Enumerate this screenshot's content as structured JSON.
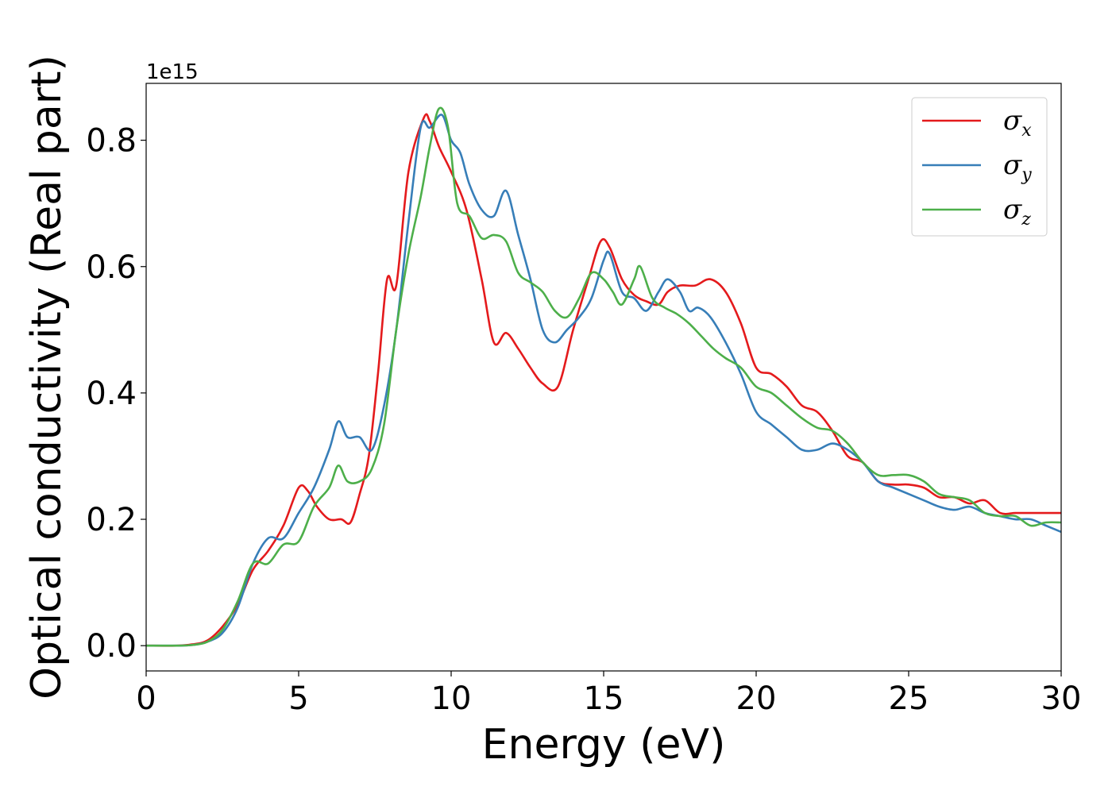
{
  "chart_data": {
    "type": "line",
    "xlabel": "Energy (eV)",
    "ylabel": "Optical conductivity (Real part)",
    "y_offset_label": "1e15",
    "xlim": [
      0,
      30
    ],
    "ylim": [
      -0.04,
      0.89
    ],
    "x_ticks": [
      0,
      5,
      10,
      15,
      20,
      25,
      30
    ],
    "x_tick_labels": [
      "0",
      "5",
      "10",
      "15",
      "20",
      "25",
      "30"
    ],
    "y_ticks": [
      0.0,
      0.2,
      0.4,
      0.6,
      0.8
    ],
    "y_tick_labels": [
      "0.0",
      "0.2",
      "0.4",
      "0.6",
      "0.8"
    ],
    "grid": false,
    "legend_position": "top-right",
    "series": [
      {
        "name": "σx",
        "symbol": "σ",
        "subscript": "x",
        "color": "#e41a1c",
        "points": [
          [
            0,
            0.0
          ],
          [
            1,
            0.0
          ],
          [
            1.5,
            0.002
          ],
          [
            2,
            0.008
          ],
          [
            2.5,
            0.03
          ],
          [
            3,
            0.065
          ],
          [
            3.5,
            0.12
          ],
          [
            4,
            0.15
          ],
          [
            4.5,
            0.19
          ],
          [
            5,
            0.25
          ],
          [
            5.3,
            0.245
          ],
          [
            5.6,
            0.22
          ],
          [
            6,
            0.2
          ],
          [
            6.4,
            0.2
          ],
          [
            6.7,
            0.195
          ],
          [
            7,
            0.24
          ],
          [
            7.3,
            0.3
          ],
          [
            7.6,
            0.43
          ],
          [
            7.9,
            0.58
          ],
          [
            8.2,
            0.57
          ],
          [
            8.6,
            0.75
          ],
          [
            9.1,
            0.835
          ],
          [
            9.3,
            0.83
          ],
          [
            9.6,
            0.79
          ],
          [
            10,
            0.75
          ],
          [
            10.5,
            0.69
          ],
          [
            11,
            0.58
          ],
          [
            11.4,
            0.48
          ],
          [
            11.8,
            0.495
          ],
          [
            12.2,
            0.47
          ],
          [
            12.6,
            0.44
          ],
          [
            13,
            0.415
          ],
          [
            13.5,
            0.41
          ],
          [
            14,
            0.5
          ],
          [
            14.5,
            0.58
          ],
          [
            14.9,
            0.64
          ],
          [
            15.2,
            0.63
          ],
          [
            15.6,
            0.58
          ],
          [
            16,
            0.555
          ],
          [
            16.4,
            0.545
          ],
          [
            16.8,
            0.54
          ],
          [
            17.1,
            0.56
          ],
          [
            17.5,
            0.57
          ],
          [
            18,
            0.57
          ],
          [
            18.5,
            0.58
          ],
          [
            19,
            0.56
          ],
          [
            19.5,
            0.51
          ],
          [
            20,
            0.44
          ],
          [
            20.5,
            0.43
          ],
          [
            21,
            0.41
          ],
          [
            21.5,
            0.38
          ],
          [
            22,
            0.37
          ],
          [
            22.5,
            0.34
          ],
          [
            23,
            0.3
          ],
          [
            23.5,
            0.29
          ],
          [
            24,
            0.26
          ],
          [
            24.5,
            0.255
          ],
          [
            25,
            0.255
          ],
          [
            25.5,
            0.25
          ],
          [
            26,
            0.235
          ],
          [
            26.5,
            0.235
          ],
          [
            27,
            0.225
          ],
          [
            27.5,
            0.23
          ],
          [
            28,
            0.21
          ],
          [
            28.5,
            0.21
          ],
          [
            29,
            0.21
          ],
          [
            29.5,
            0.21
          ],
          [
            30,
            0.21
          ]
        ]
      },
      {
        "name": "σy",
        "symbol": "σ",
        "subscript": "y",
        "color": "#377eb8",
        "points": [
          [
            0,
            0.0
          ],
          [
            1,
            0.0
          ],
          [
            1.5,
            0.001
          ],
          [
            2,
            0.006
          ],
          [
            2.5,
            0.02
          ],
          [
            3,
            0.06
          ],
          [
            3.5,
            0.13
          ],
          [
            4,
            0.17
          ],
          [
            4.5,
            0.17
          ],
          [
            5,
            0.21
          ],
          [
            5.5,
            0.25
          ],
          [
            6,
            0.31
          ],
          [
            6.3,
            0.355
          ],
          [
            6.6,
            0.33
          ],
          [
            7,
            0.33
          ],
          [
            7.4,
            0.31
          ],
          [
            7.8,
            0.38
          ],
          [
            8.2,
            0.5
          ],
          [
            8.6,
            0.67
          ],
          [
            9,
            0.82
          ],
          [
            9.3,
            0.82
          ],
          [
            9.7,
            0.84
          ],
          [
            10,
            0.8
          ],
          [
            10.3,
            0.78
          ],
          [
            10.6,
            0.73
          ],
          [
            11,
            0.69
          ],
          [
            11.4,
            0.68
          ],
          [
            11.8,
            0.72
          ],
          [
            12.2,
            0.65
          ],
          [
            12.6,
            0.58
          ],
          [
            13,
            0.5
          ],
          [
            13.4,
            0.48
          ],
          [
            13.8,
            0.5
          ],
          [
            14.2,
            0.52
          ],
          [
            14.6,
            0.55
          ],
          [
            15,
            0.61
          ],
          [
            15.2,
            0.62
          ],
          [
            15.6,
            0.56
          ],
          [
            16,
            0.55
          ],
          [
            16.4,
            0.53
          ],
          [
            16.8,
            0.56
          ],
          [
            17.1,
            0.58
          ],
          [
            17.5,
            0.56
          ],
          [
            17.8,
            0.53
          ],
          [
            18.1,
            0.535
          ],
          [
            18.5,
            0.52
          ],
          [
            19,
            0.48
          ],
          [
            19.5,
            0.43
          ],
          [
            20,
            0.37
          ],
          [
            20.5,
            0.35
          ],
          [
            21,
            0.33
          ],
          [
            21.5,
            0.31
          ],
          [
            22,
            0.31
          ],
          [
            22.5,
            0.32
          ],
          [
            23,
            0.31
          ],
          [
            23.5,
            0.29
          ],
          [
            24,
            0.26
          ],
          [
            24.5,
            0.25
          ],
          [
            25,
            0.24
          ],
          [
            25.5,
            0.23
          ],
          [
            26,
            0.22
          ],
          [
            26.5,
            0.215
          ],
          [
            27,
            0.22
          ],
          [
            27.5,
            0.21
          ],
          [
            28,
            0.205
          ],
          [
            28.5,
            0.2
          ],
          [
            29,
            0.2
          ],
          [
            29.5,
            0.19
          ],
          [
            30,
            0.18
          ]
        ]
      },
      {
        "name": "σz",
        "symbol": "σ",
        "subscript": "z",
        "color": "#4daf4a",
        "points": [
          [
            0,
            0.0
          ],
          [
            1,
            0.0
          ],
          [
            1.5,
            0.001
          ],
          [
            2,
            0.006
          ],
          [
            2.5,
            0.025
          ],
          [
            3,
            0.07
          ],
          [
            3.5,
            0.13
          ],
          [
            4,
            0.13
          ],
          [
            4.5,
            0.16
          ],
          [
            5,
            0.165
          ],
          [
            5.5,
            0.22
          ],
          [
            6,
            0.25
          ],
          [
            6.3,
            0.285
          ],
          [
            6.6,
            0.26
          ],
          [
            7,
            0.26
          ],
          [
            7.4,
            0.28
          ],
          [
            7.8,
            0.35
          ],
          [
            8.2,
            0.5
          ],
          [
            8.6,
            0.62
          ],
          [
            9,
            0.71
          ],
          [
            9.3,
            0.79
          ],
          [
            9.6,
            0.85
          ],
          [
            9.9,
            0.82
          ],
          [
            10.2,
            0.7
          ],
          [
            10.6,
            0.68
          ],
          [
            11,
            0.645
          ],
          [
            11.4,
            0.65
          ],
          [
            11.8,
            0.64
          ],
          [
            12.2,
            0.59
          ],
          [
            12.6,
            0.575
          ],
          [
            13,
            0.56
          ],
          [
            13.4,
            0.53
          ],
          [
            13.8,
            0.52
          ],
          [
            14.2,
            0.55
          ],
          [
            14.6,
            0.59
          ],
          [
            15,
            0.58
          ],
          [
            15.3,
            0.56
          ],
          [
            15.6,
            0.54
          ],
          [
            16,
            0.58
          ],
          [
            16.2,
            0.6
          ],
          [
            16.6,
            0.55
          ],
          [
            17,
            0.535
          ],
          [
            17.4,
            0.525
          ],
          [
            17.8,
            0.51
          ],
          [
            18.2,
            0.49
          ],
          [
            18.6,
            0.47
          ],
          [
            19,
            0.455
          ],
          [
            19.5,
            0.44
          ],
          [
            20,
            0.41
          ],
          [
            20.5,
            0.4
          ],
          [
            21,
            0.38
          ],
          [
            21.5,
            0.36
          ],
          [
            22,
            0.345
          ],
          [
            22.5,
            0.34
          ],
          [
            23,
            0.32
          ],
          [
            23.5,
            0.29
          ],
          [
            24,
            0.27
          ],
          [
            24.5,
            0.27
          ],
          [
            25,
            0.27
          ],
          [
            25.5,
            0.26
          ],
          [
            26,
            0.24
          ],
          [
            26.5,
            0.235
          ],
          [
            27,
            0.23
          ],
          [
            27.5,
            0.21
          ],
          [
            28,
            0.205
          ],
          [
            28.5,
            0.205
          ],
          [
            29,
            0.19
          ],
          [
            29.5,
            0.195
          ],
          [
            30,
            0.195
          ]
        ]
      }
    ]
  }
}
